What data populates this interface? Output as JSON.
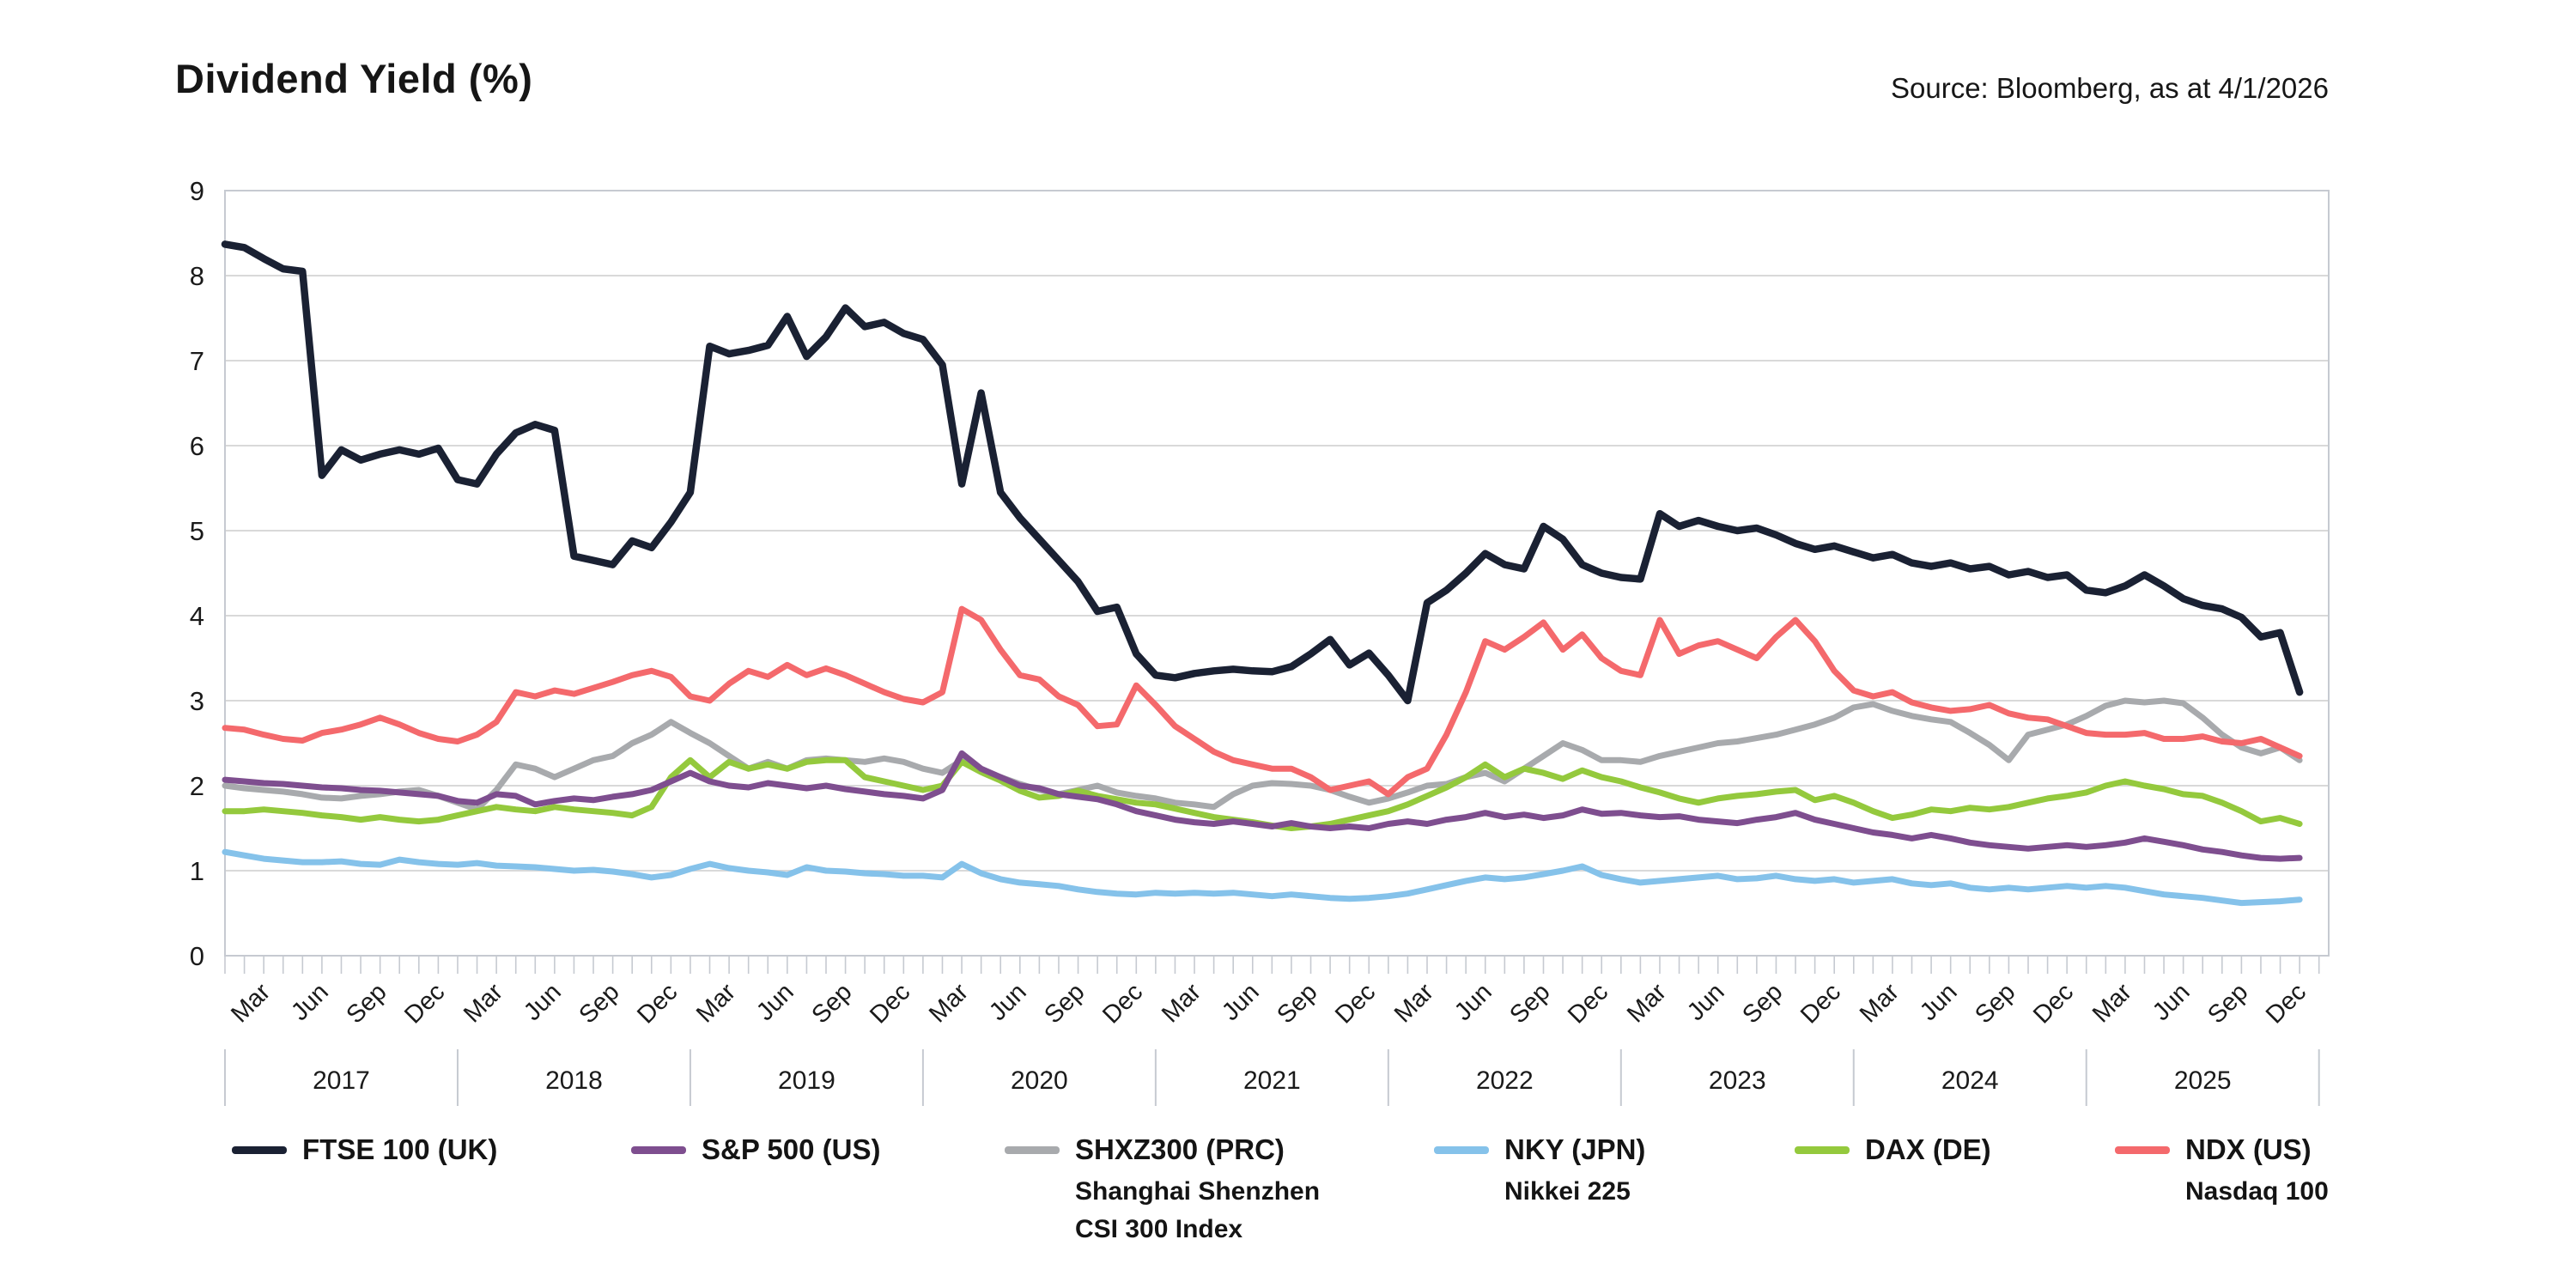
{
  "header": {
    "title": "Dividend Yield (%)",
    "source": "Source: Bloomberg, as at 4/1/2026"
  },
  "chart_data": {
    "type": "line",
    "title": "Dividend Yield (%)",
    "x_frequency": "monthly",
    "x_start": "2017-01",
    "x_end": "2025-12",
    "years": [
      "2017",
      "2018",
      "2019",
      "2020",
      "2021",
      "2022",
      "2023",
      "2024",
      "2025"
    ],
    "quarter_labels": [
      "Mar",
      "Jun",
      "Sep",
      "Dec"
    ],
    "ylim": [
      0,
      9
    ],
    "y_ticks": [
      0,
      1,
      2,
      3,
      4,
      5,
      6,
      7,
      8,
      9
    ],
    "grid": "horizontal",
    "legend_position": "bottom",
    "series": [
      {
        "name": "FTSE 100 (UK)",
        "sublabel": [],
        "color": "#1a2133",
        "values": [
          8.37,
          8.33,
          8.2,
          8.08,
          8.05,
          5.65,
          5.95,
          5.83,
          5.9,
          5.95,
          5.9,
          5.97,
          5.6,
          5.55,
          5.9,
          6.15,
          6.25,
          6.18,
          4.7,
          4.65,
          4.6,
          4.88,
          4.8,
          5.1,
          5.45,
          7.17,
          7.08,
          7.12,
          7.18,
          7.52,
          7.05,
          7.28,
          7.62,
          7.4,
          7.45,
          7.32,
          7.25,
          6.95,
          5.55,
          6.62,
          5.45,
          5.15,
          4.9,
          4.65,
          4.4,
          4.05,
          4.1,
          3.55,
          3.3,
          3.27,
          3.32,
          3.35,
          3.37,
          3.35,
          3.34,
          3.4,
          3.55,
          3.72,
          3.42,
          3.56,
          3.3,
          3.0,
          4.15,
          4.3,
          4.5,
          4.73,
          4.6,
          4.55,
          5.05,
          4.9,
          4.6,
          4.5,
          4.45,
          4.43,
          5.2,
          5.05,
          5.12,
          5.05,
          5.0,
          5.03,
          4.95,
          4.85,
          4.78,
          4.82,
          4.75,
          4.68,
          4.72,
          4.62,
          4.58,
          4.62,
          4.55,
          4.58,
          4.48,
          4.52,
          4.45,
          4.48,
          4.3,
          4.27,
          4.35,
          4.48,
          4.35,
          4.2,
          4.12,
          4.08,
          3.98,
          3.75,
          3.8,
          3.1
        ]
      },
      {
        "name": "S&P 500 (US)",
        "sublabel": [],
        "color": "#7e4e8f",
        "values": [
          2.07,
          2.05,
          2.03,
          2.02,
          2.0,
          1.98,
          1.97,
          1.95,
          1.94,
          1.92,
          1.9,
          1.88,
          1.82,
          1.8,
          1.9,
          1.88,
          1.78,
          1.82,
          1.85,
          1.83,
          1.87,
          1.9,
          1.95,
          2.05,
          2.15,
          2.05,
          2.0,
          1.98,
          2.03,
          2.0,
          1.97,
          2.0,
          1.96,
          1.93,
          1.9,
          1.88,
          1.85,
          1.95,
          2.38,
          2.2,
          2.1,
          2.0,
          1.97,
          1.9,
          1.87,
          1.84,
          1.78,
          1.7,
          1.65,
          1.6,
          1.57,
          1.55,
          1.58,
          1.55,
          1.52,
          1.56,
          1.52,
          1.5,
          1.52,
          1.5,
          1.55,
          1.58,
          1.55,
          1.6,
          1.63,
          1.68,
          1.63,
          1.66,
          1.62,
          1.65,
          1.72,
          1.67,
          1.68,
          1.65,
          1.63,
          1.64,
          1.6,
          1.58,
          1.56,
          1.6,
          1.63,
          1.68,
          1.6,
          1.55,
          1.5,
          1.45,
          1.42,
          1.38,
          1.42,
          1.38,
          1.33,
          1.3,
          1.28,
          1.26,
          1.28,
          1.3,
          1.28,
          1.3,
          1.33,
          1.38,
          1.34,
          1.3,
          1.25,
          1.22,
          1.18,
          1.15,
          1.14,
          1.15
        ]
      },
      {
        "name": "SHXZ300 (PRC)",
        "sublabel": [
          "Shanghai Shenzhen",
          "CSI 300 Index"
        ],
        "color": "#a8aaad",
        "values": [
          2.0,
          1.97,
          1.95,
          1.93,
          1.9,
          1.86,
          1.85,
          1.88,
          1.9,
          1.93,
          1.95,
          1.88,
          1.8,
          1.72,
          1.95,
          2.25,
          2.2,
          2.1,
          2.2,
          2.3,
          2.35,
          2.5,
          2.6,
          2.75,
          2.62,
          2.5,
          2.35,
          2.2,
          2.28,
          2.2,
          2.3,
          2.32,
          2.3,
          2.28,
          2.32,
          2.28,
          2.2,
          2.15,
          2.3,
          2.18,
          2.1,
          2.02,
          1.95,
          1.9,
          1.95,
          2.0,
          1.92,
          1.88,
          1.85,
          1.8,
          1.78,
          1.75,
          1.9,
          2.0,
          2.03,
          2.02,
          2.0,
          1.95,
          1.87,
          1.8,
          1.85,
          1.92,
          2.0,
          2.02,
          2.1,
          2.15,
          2.05,
          2.2,
          2.35,
          2.5,
          2.42,
          2.3,
          2.3,
          2.28,
          2.35,
          2.4,
          2.45,
          2.5,
          2.52,
          2.56,
          2.6,
          2.66,
          2.72,
          2.8,
          2.92,
          2.96,
          2.88,
          2.82,
          2.78,
          2.75,
          2.62,
          2.48,
          2.3,
          2.6,
          2.66,
          2.72,
          2.82,
          2.94,
          3.0,
          2.98,
          3.0,
          2.97,
          2.8,
          2.6,
          2.45,
          2.38,
          2.45,
          2.3
        ]
      },
      {
        "name": "NKY (JPN)",
        "sublabel": [
          "Nikkei 225"
        ],
        "color": "#85c2ea",
        "values": [
          1.22,
          1.18,
          1.14,
          1.12,
          1.1,
          1.1,
          1.11,
          1.08,
          1.07,
          1.13,
          1.1,
          1.08,
          1.07,
          1.09,
          1.06,
          1.05,
          1.04,
          1.02,
          1.0,
          1.01,
          0.99,
          0.96,
          0.92,
          0.95,
          1.02,
          1.08,
          1.03,
          1.0,
          0.98,
          0.95,
          1.04,
          1.0,
          0.99,
          0.97,
          0.96,
          0.94,
          0.94,
          0.92,
          1.08,
          0.97,
          0.9,
          0.86,
          0.84,
          0.82,
          0.78,
          0.75,
          0.73,
          0.72,
          0.74,
          0.73,
          0.74,
          0.73,
          0.74,
          0.72,
          0.7,
          0.72,
          0.7,
          0.68,
          0.67,
          0.68,
          0.7,
          0.73,
          0.78,
          0.83,
          0.88,
          0.92,
          0.9,
          0.92,
          0.96,
          1.0,
          1.05,
          0.95,
          0.9,
          0.86,
          0.88,
          0.9,
          0.92,
          0.94,
          0.9,
          0.91,
          0.94,
          0.9,
          0.88,
          0.9,
          0.86,
          0.88,
          0.9,
          0.85,
          0.83,
          0.85,
          0.8,
          0.78,
          0.8,
          0.78,
          0.8,
          0.82,
          0.8,
          0.82,
          0.8,
          0.76,
          0.72,
          0.7,
          0.68,
          0.65,
          0.62,
          0.63,
          0.64,
          0.66
        ]
      },
      {
        "name": "DAX (DE)",
        "sublabel": [],
        "color": "#94c93d",
        "values": [
          1.7,
          1.7,
          1.72,
          1.7,
          1.68,
          1.65,
          1.63,
          1.6,
          1.63,
          1.6,
          1.58,
          1.6,
          1.65,
          1.7,
          1.75,
          1.72,
          1.7,
          1.75,
          1.72,
          1.7,
          1.68,
          1.65,
          1.75,
          2.1,
          2.3,
          2.1,
          2.28,
          2.2,
          2.25,
          2.2,
          2.28,
          2.3,
          2.3,
          2.1,
          2.05,
          2.0,
          1.95,
          2.0,
          2.28,
          2.16,
          2.06,
          1.94,
          1.86,
          1.88,
          1.94,
          1.88,
          1.84,
          1.8,
          1.78,
          1.73,
          1.68,
          1.63,
          1.6,
          1.57,
          1.53,
          1.5,
          1.52,
          1.55,
          1.6,
          1.65,
          1.7,
          1.78,
          1.88,
          1.98,
          2.1,
          2.25,
          2.1,
          2.2,
          2.15,
          2.08,
          2.18,
          2.1,
          2.05,
          1.98,
          1.92,
          1.85,
          1.8,
          1.85,
          1.88,
          1.9,
          1.93,
          1.95,
          1.83,
          1.88,
          1.8,
          1.7,
          1.62,
          1.66,
          1.72,
          1.7,
          1.74,
          1.72,
          1.75,
          1.8,
          1.85,
          1.88,
          1.92,
          2.0,
          2.05,
          2.0,
          1.96,
          1.9,
          1.88,
          1.8,
          1.7,
          1.58,
          1.62,
          1.55
        ]
      },
      {
        "name": "NDX (US)",
        "sublabel": [
          "Nasdaq 100"
        ],
        "color": "#f4696c",
        "values": [
          2.68,
          2.66,
          2.6,
          2.55,
          2.53,
          2.62,
          2.66,
          2.72,
          2.8,
          2.72,
          2.62,
          2.55,
          2.52,
          2.6,
          2.75,
          3.1,
          3.05,
          3.12,
          3.08,
          3.15,
          3.22,
          3.3,
          3.35,
          3.28,
          3.05,
          3.0,
          3.2,
          3.35,
          3.28,
          3.42,
          3.3,
          3.38,
          3.3,
          3.2,
          3.1,
          3.02,
          2.98,
          3.1,
          4.08,
          3.95,
          3.6,
          3.3,
          3.25,
          3.05,
          2.95,
          2.7,
          2.72,
          3.18,
          2.95,
          2.7,
          2.55,
          2.4,
          2.3,
          2.25,
          2.2,
          2.2,
          2.1,
          1.95,
          2.0,
          2.05,
          1.9,
          2.1,
          2.2,
          2.6,
          3.1,
          3.7,
          3.6,
          3.75,
          3.92,
          3.6,
          3.78,
          3.5,
          3.35,
          3.3,
          3.95,
          3.55,
          3.65,
          3.7,
          3.6,
          3.5,
          3.75,
          3.95,
          3.7,
          3.35,
          3.12,
          3.05,
          3.1,
          2.98,
          2.92,
          2.88,
          2.9,
          2.95,
          2.85,
          2.8,
          2.78,
          2.7,
          2.62,
          2.6,
          2.6,
          2.62,
          2.55,
          2.55,
          2.58,
          2.52,
          2.5,
          2.55,
          2.45,
          2.35
        ]
      }
    ]
  }
}
